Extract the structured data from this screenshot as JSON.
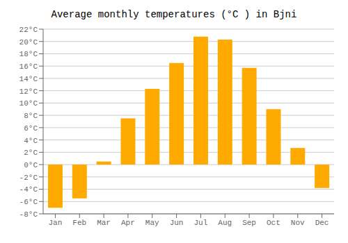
{
  "chart_data": {
    "type": "bar",
    "title": "Average monthly temperatures (°C ) in Bjni",
    "categories": [
      "Jan",
      "Feb",
      "Mar",
      "Apr",
      "May",
      "Jun",
      "Jul",
      "Aug",
      "Sep",
      "Oct",
      "Nov",
      "Dec"
    ],
    "values": [
      -7,
      -5.5,
      0.5,
      7.5,
      12.3,
      16.5,
      20.8,
      20.3,
      15.7,
      9.0,
      2.7,
      -3.8
    ],
    "color": "#FFAA00",
    "ylim": [
      -8,
      22
    ],
    "yticks": [
      {
        "value": -8,
        "label": "-8°C"
      },
      {
        "value": -6,
        "label": "-6°C"
      },
      {
        "value": -4,
        "label": "-4°C"
      },
      {
        "value": -2,
        "label": "-2°C"
      },
      {
        "value": 0,
        "label": "0°C"
      },
      {
        "value": 2,
        "label": "2°C"
      },
      {
        "value": 4,
        "label": "4°C"
      },
      {
        "value": 6,
        "label": "6°C"
      },
      {
        "value": 8,
        "label": "8°C"
      },
      {
        "value": 10,
        "label": "10°C"
      },
      {
        "value": 12,
        "label": "12°C"
      },
      {
        "value": 14,
        "label": "14°C"
      },
      {
        "value": 16,
        "label": "16°C"
      },
      {
        "value": 18,
        "label": "18°C"
      },
      {
        "value": 20,
        "label": "20°C"
      },
      {
        "value": 22,
        "label": "22°C"
      }
    ],
    "grid": true
  }
}
